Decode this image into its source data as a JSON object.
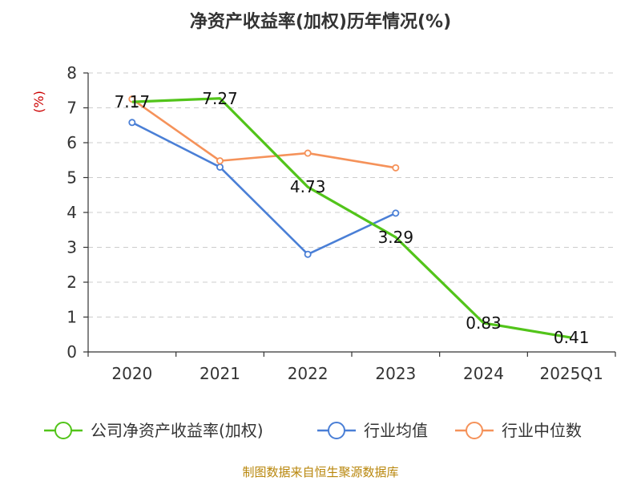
{
  "chart_data": {
    "type": "line",
    "title": "净资产收益率(加权)历年情况(%)",
    "ylabel": "(%)",
    "ylim": [
      0,
      8
    ],
    "yticks": [
      0,
      1,
      2,
      3,
      4,
      5,
      6,
      7,
      8
    ],
    "categories": [
      "2020",
      "2021",
      "2022",
      "2023",
      "2024",
      "2025Q1"
    ],
    "legend_position": "bottom",
    "series": [
      {
        "name": "公司净资产收益率(加权)",
        "color": "#52c41a",
        "values": [
          7.17,
          7.27,
          4.73,
          3.29,
          0.83,
          0.41
        ],
        "labels": [
          "7.17",
          "7.27",
          "4.73",
          "3.29",
          "0.83",
          "0.41"
        ]
      },
      {
        "name": "行业均值",
        "color": "#4a7fd6",
        "values": [
          6.58,
          5.3,
          2.8,
          3.98,
          null,
          null
        ]
      },
      {
        "name": "行业中位数",
        "color": "#f5925a",
        "values": [
          7.25,
          5.48,
          5.7,
          5.28,
          null,
          null
        ]
      }
    ]
  },
  "footer": {
    "source": "制图数据来自恒生聚源数据库"
  }
}
